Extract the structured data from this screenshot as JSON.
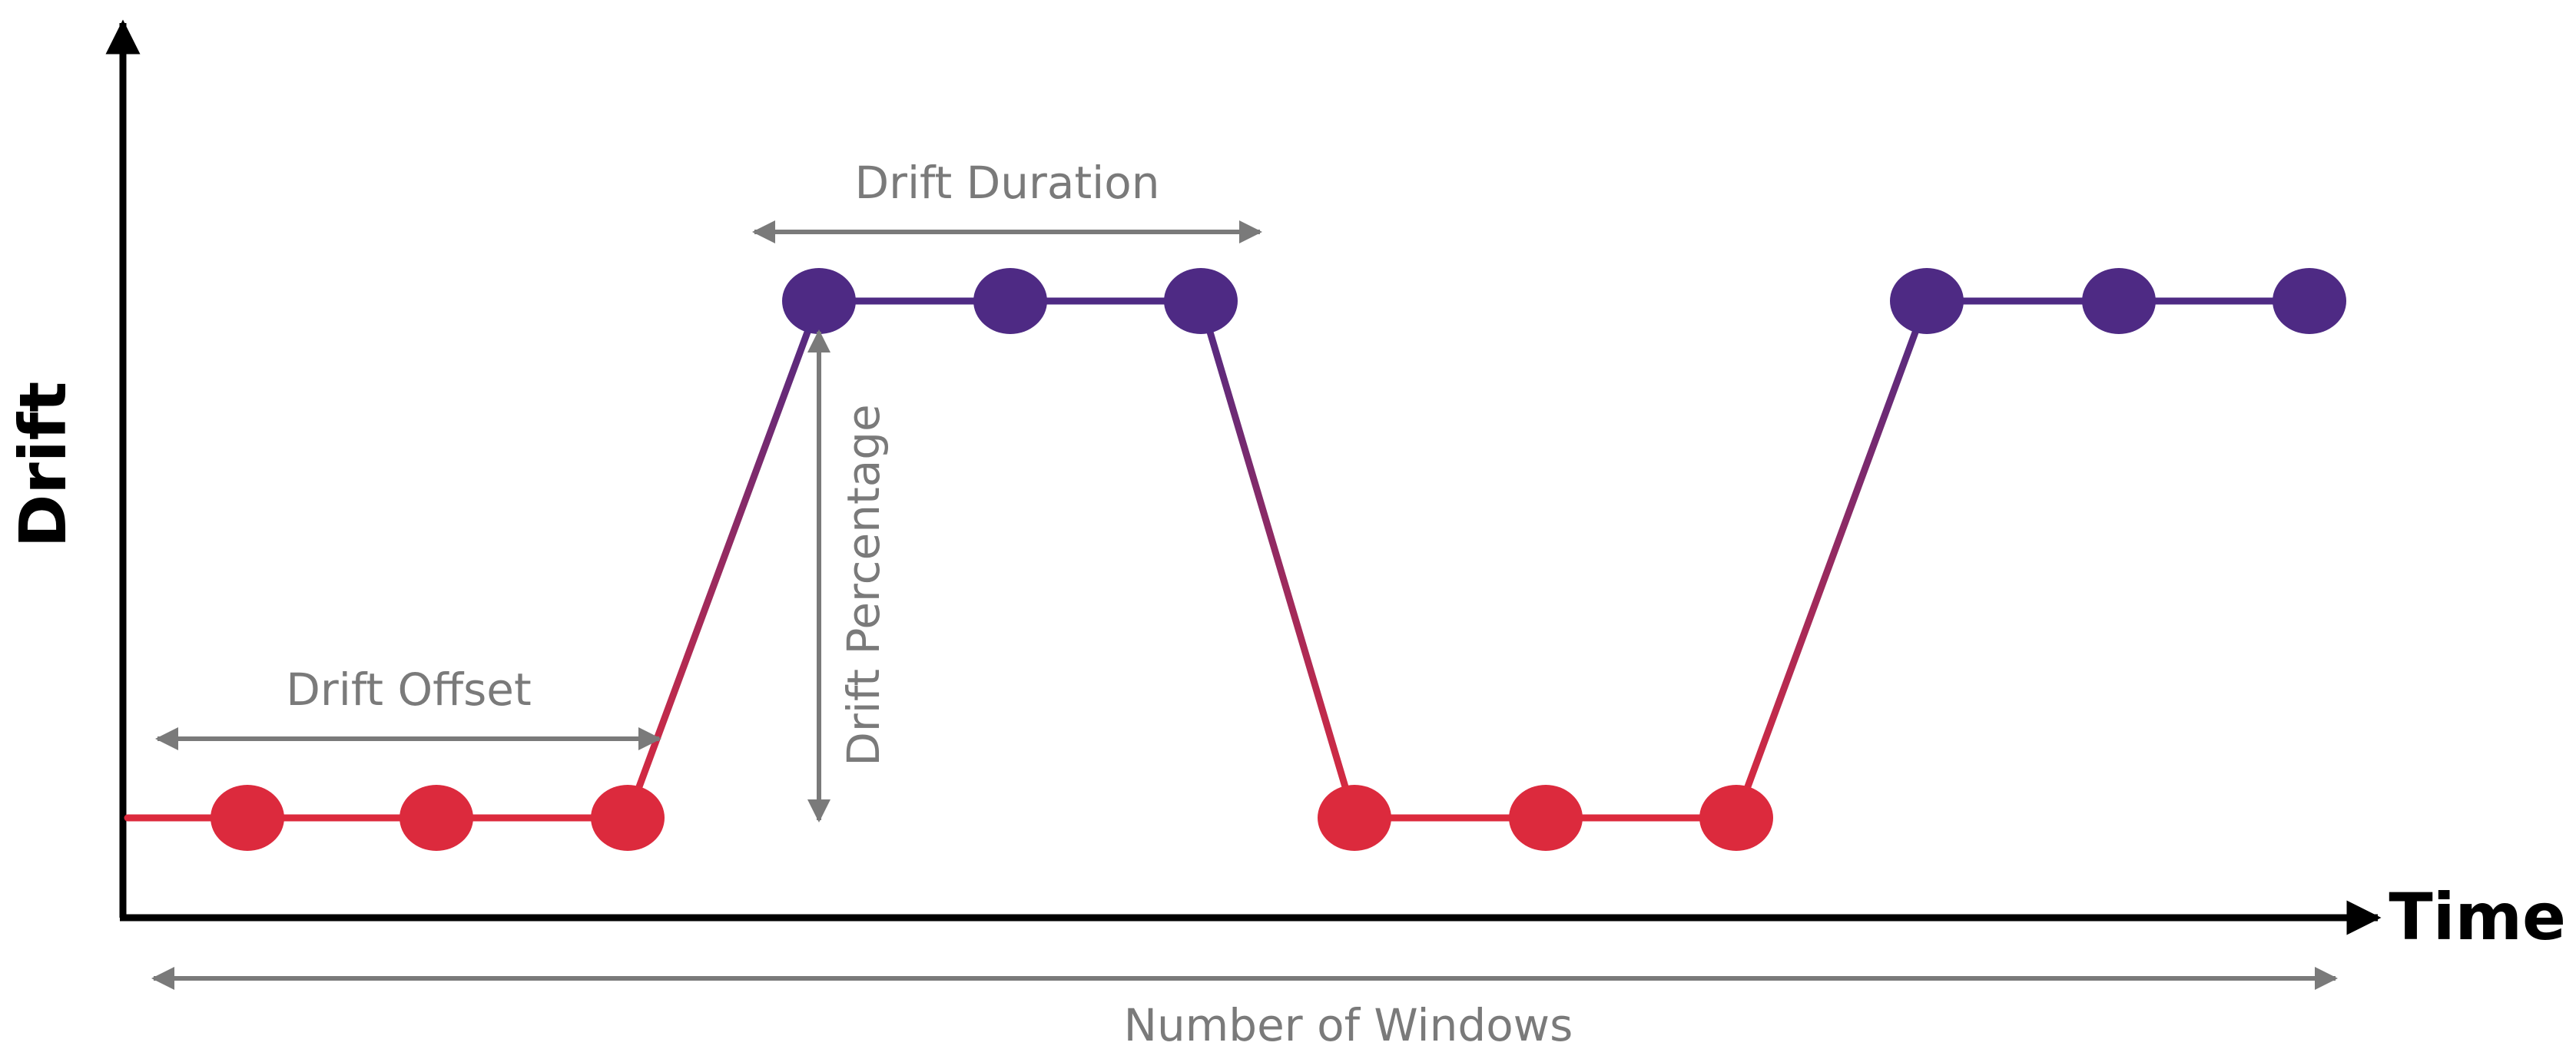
{
  "axes": {
    "x_title": "Time",
    "y_title": "Drift"
  },
  "annotations": {
    "offset": "Drift Offset",
    "duration": "Drift Duration",
    "percentage": "Drift Percentage",
    "windows": "Number of Windows"
  },
  "series": {
    "levels": [
      "low",
      "low",
      "low",
      "high",
      "high",
      "high",
      "low",
      "low",
      "low",
      "high",
      "high",
      "high"
    ]
  },
  "colors": {
    "low": "#dc2a3d",
    "high": "#4e2a84",
    "axis": "#000000",
    "annotation": "#7a7a7a"
  }
}
